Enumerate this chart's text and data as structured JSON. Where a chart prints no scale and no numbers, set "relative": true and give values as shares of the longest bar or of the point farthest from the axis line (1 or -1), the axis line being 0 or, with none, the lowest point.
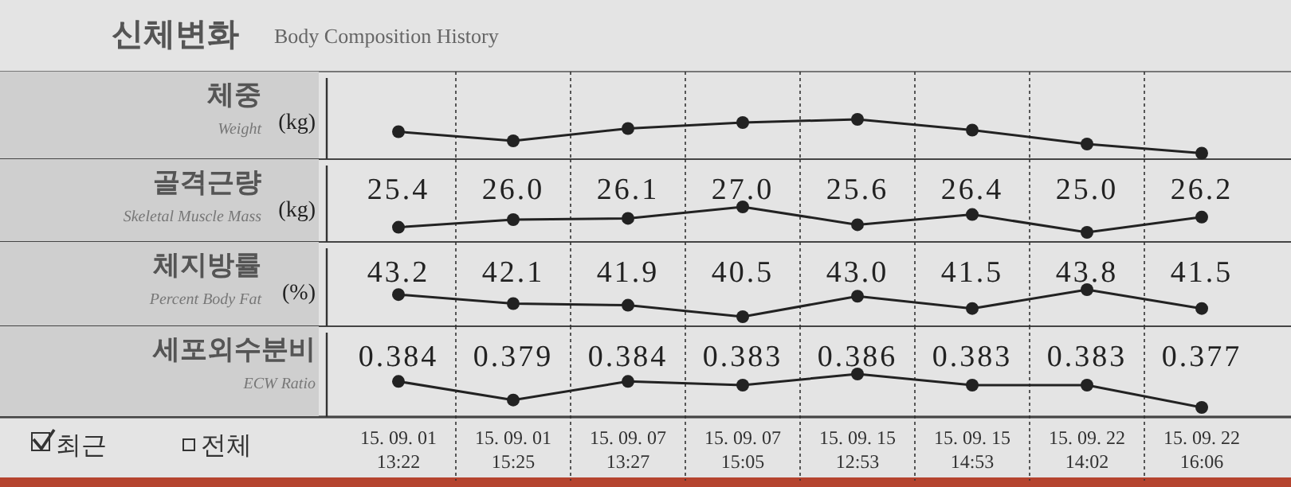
{
  "chart_data": [
    {
      "type": "line",
      "title": "체중",
      "subtitle": "Weight",
      "ylabel": "(kg)",
      "annotations": [
        "신체변화",
        "Body Composition History"
      ],
      "relative": true,
      "categories": [
        null,
        null,
        null,
        null,
        null,
        null,
        null,
        null
      ],
      "values": [
        0.69,
        0.46,
        0.77,
        0.92,
        1,
        0.73,
        0.38,
        0.15
      ],
      "color": "#222222",
      "marker": "circle",
      "grid": "x",
      "tick_labels": false
    },
    {
      "type": "line",
      "title": "골격근량",
      "subtitle": "Skeletal Muscle Mass",
      "ylabel": "(kg)",
      "categories": [
        null,
        null,
        null,
        null,
        null,
        null,
        null,
        null
      ],
      "values": [
        25.4,
        26.0,
        26.1,
        27.0,
        25.6,
        26.4,
        25.0,
        26.2
      ],
      "value_labels": [
        "25.4",
        "26.0",
        "26.1",
        "27.0",
        "25.6",
        "26.4",
        "25.0",
        "26.2"
      ],
      "color": "#222222",
      "marker": "circle",
      "grid": "x",
      "tick_labels": false
    },
    {
      "type": "line",
      "title": "체지방률",
      "subtitle": "Percent Body Fat",
      "ylabel": "(%)",
      "categories": [
        null,
        null,
        null,
        null,
        null,
        null,
        null,
        null
      ],
      "values": [
        43.2,
        42.1,
        41.9,
        40.5,
        43.0,
        41.5,
        43.8,
        41.5
      ],
      "value_labels": [
        "43.2",
        "42.1",
        "41.9",
        "40.5",
        "43.0",
        "41.5",
        "43.8",
        "41.5"
      ],
      "color": "#222222",
      "marker": "circle",
      "grid": "x",
      "tick_labels": false
    },
    {
      "type": "line",
      "title": "세포외수분비",
      "subtitle": "ECW Ratio",
      "annotations": [
        "최근",
        "전체"
      ],
      "categories": [
        "15. 09. 01\n13:22",
        "15. 09. 01\n15:25",
        "15. 09. 07\n13:27",
        "15. 09. 07\n15:05",
        "15. 09. 15\n12:53",
        "15. 09. 15\n14:53",
        "15. 09. 22\n14:02",
        "15. 09. 22\n16:06"
      ],
      "values": [
        0.384,
        0.379,
        0.384,
        0.383,
        0.386,
        0.383,
        0.383,
        0.377
      ],
      "value_labels": [
        "0.384",
        "0.379",
        "0.384",
        "0.383",
        "0.386",
        "0.383",
        "0.383",
        "0.377"
      ],
      "color": "#222222",
      "marker": "circle",
      "grid": "x",
      "tick_labels": "x"
    }
  ]
}
